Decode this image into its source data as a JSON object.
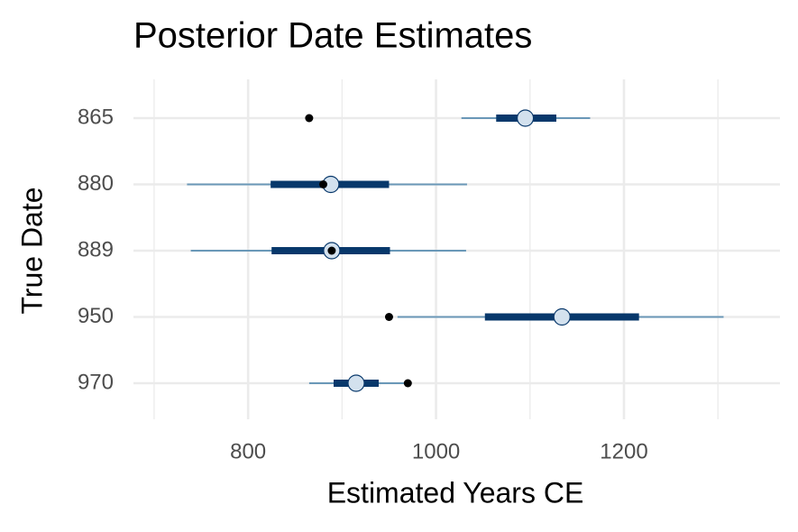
{
  "chart_data": {
    "type": "interval",
    "title": "Posterior Date Estimates",
    "xlabel": "Estimated Years CE",
    "ylabel": "True Date",
    "categories": [
      "865",
      "880",
      "889",
      "950",
      "970"
    ],
    "true_values": [
      865,
      880,
      889,
      950,
      970
    ],
    "median": [
      1095,
      888,
      889,
      1134,
      915
    ],
    "inner_low": [
      1064,
      824,
      825,
      1052,
      891
    ],
    "inner_high": [
      1128,
      950,
      951,
      1216,
      939
    ],
    "outer_low": [
      1027,
      735,
      739,
      959,
      865
    ],
    "outer_high": [
      1164,
      1033,
      1032,
      1306,
      969
    ],
    "xlim": [
      678,
      1366
    ],
    "xticks": [
      800,
      1000,
      1200
    ],
    "xminor": [
      700,
      900,
      1100,
      1300
    ],
    "grid": true,
    "outer_color": "#6a98b8",
    "inner_color": "#08386b",
    "point_color": "#d3e1ee",
    "true_color": "#000000"
  }
}
